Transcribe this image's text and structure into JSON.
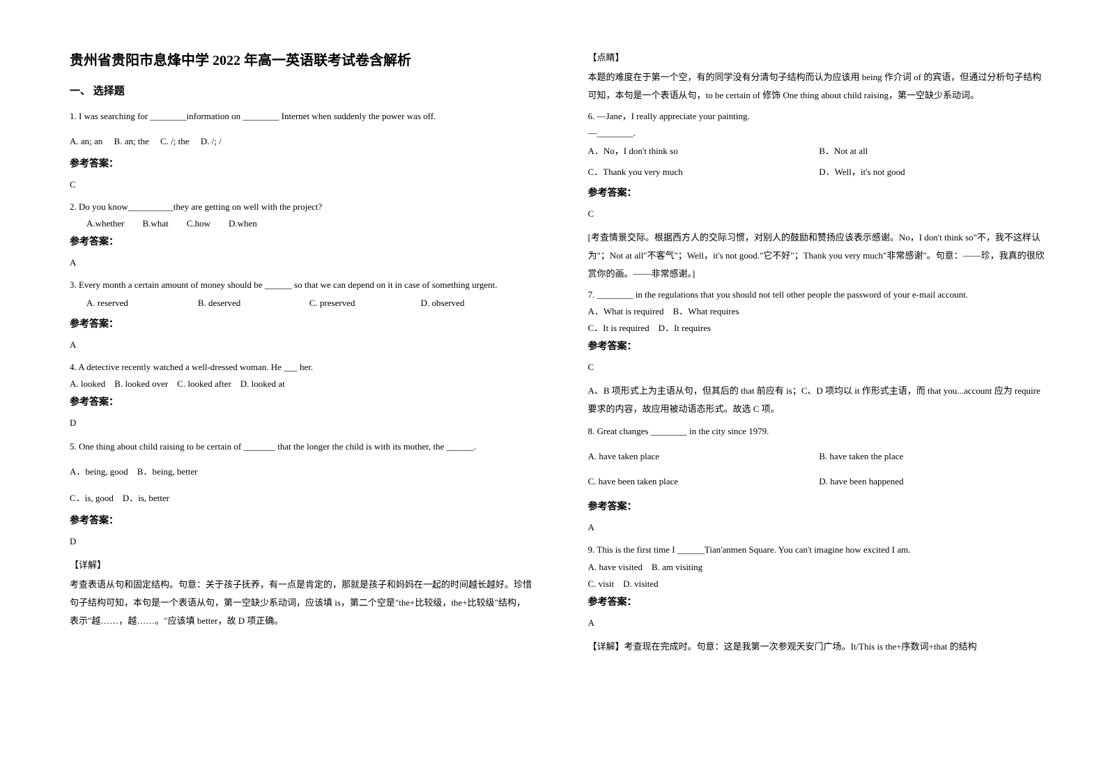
{
  "title": "贵州省贵阳市息烽中学 2022 年高一英语联考试卷含解析",
  "section1_header": "一、 选择题",
  "answer_label": "参考答案：",
  "left": {
    "q1": {
      "stem": "1. I was searching for ________information on ________ Internet when suddenly the power was off.",
      "opts": "A. an; an  B. an; the  C. /; the  D. /; /",
      "ans": "C"
    },
    "q2": {
      "stem": "2. Do you know__________they are getting on well with the project?",
      "opts": "A.whether  B.what  C.how  D.when",
      "ans": "A"
    },
    "q3": {
      "stem": "3. Every month a certain amount of money should be ______ so that we can depend on it in case of something urgent.",
      "optA": "A. reserved",
      "optB": "B. deserved",
      "optC": "C. preserved",
      "optD": "D. observed",
      "ans": "A"
    },
    "q4": {
      "stem": "4. A detective recently watched a well-dressed woman. He ___ her.",
      "opts": "A. looked B. looked over C. looked after D. looked at",
      "ans": "D"
    },
    "q5": {
      "stem": "5. One thing about child raising to be certain of _______ that the longer the child is with its mother, the ______.",
      "optsAB": "A．being, good B．being, better",
      "optsCD": "C．is, good D．is, better",
      "ans": "D",
      "detail_label": "【详解】",
      "detail": "考查表语从句和固定结构。句意：关于孩子抚养，有一点是肯定的，那就是孩子和妈妈在一起的时间越长越好。珍惜句子结构可知，本句是一个表语从句，第一空缺少系动词，应该填 is，第二个空是\"the+比较级，the+比较级\"结构，表示\"越……，越……。\"应该填 better，故 D 项正确。"
    }
  },
  "right": {
    "q5_tip_label": "【点睛】",
    "q5_tip": "本题的难度在于第一个空，有的同学没有分清句子结构而认为应该用 being 作介词 of 的宾语，但通过分析句子结构可知，本句是一个表语从句，to be certain of 修饰 One thing about child raising，第一空缺少系动词。",
    "q6": {
      "stem1": "6. —Jane，I really appreciate your painting.",
      "stem2": "—________.",
      "optA": "A．No，I don't think so",
      "optB": "B．Not at all",
      "optC": "C．Thank you very much",
      "optD": "D．Well，it's not good",
      "ans": "C",
      "explain": "[考查情景交际。根据西方人的交际习惯，对别人的鼓励和赞扬应该表示感谢。No，I don't think so\"不，我不这样认为\"；Not at all\"不客气\"；Well，it's not good.\"它不好\"；Thank you very much\"非常感谢\"。句意：——珍，我真的很欣赏你的画。——非常感谢。]"
    },
    "q7": {
      "stem": "7. ________ in the regulations that you should not tell other people the password of your e-mail account.",
      "optsAB": "A．What is required B．What requires",
      "optsCD": "C．It is required D．It requires",
      "ans": "C",
      "explain": "A、B 项形式上为主语从句，但其后的 that 前应有 is；C、D 项均以 it 作形式主语，而 that you...account 应为 require 要求的内容，故应用被动语态形式。故选 C 项。"
    },
    "q8": {
      "stem": "8. Great changes ________ in the city since 1979.",
      "optA": "A. have taken place",
      "optB": "B. have taken the place",
      "optC": "C. have been taken place",
      "optD": "D. have been happened",
      "ans": "A"
    },
    "q9": {
      "stem": "9. This is the first time I ______Tian'anmen Square. You can't imagine how excited I am.",
      "optsAB": "A. have visited B. am visiting",
      "optsCD": "C. visit D. visited",
      "ans": "A",
      "explain": "【详解】考查现在完成时。句意：这是我第一次参观天安门广场。It/This is the+序数词+that 的结构"
    }
  }
}
